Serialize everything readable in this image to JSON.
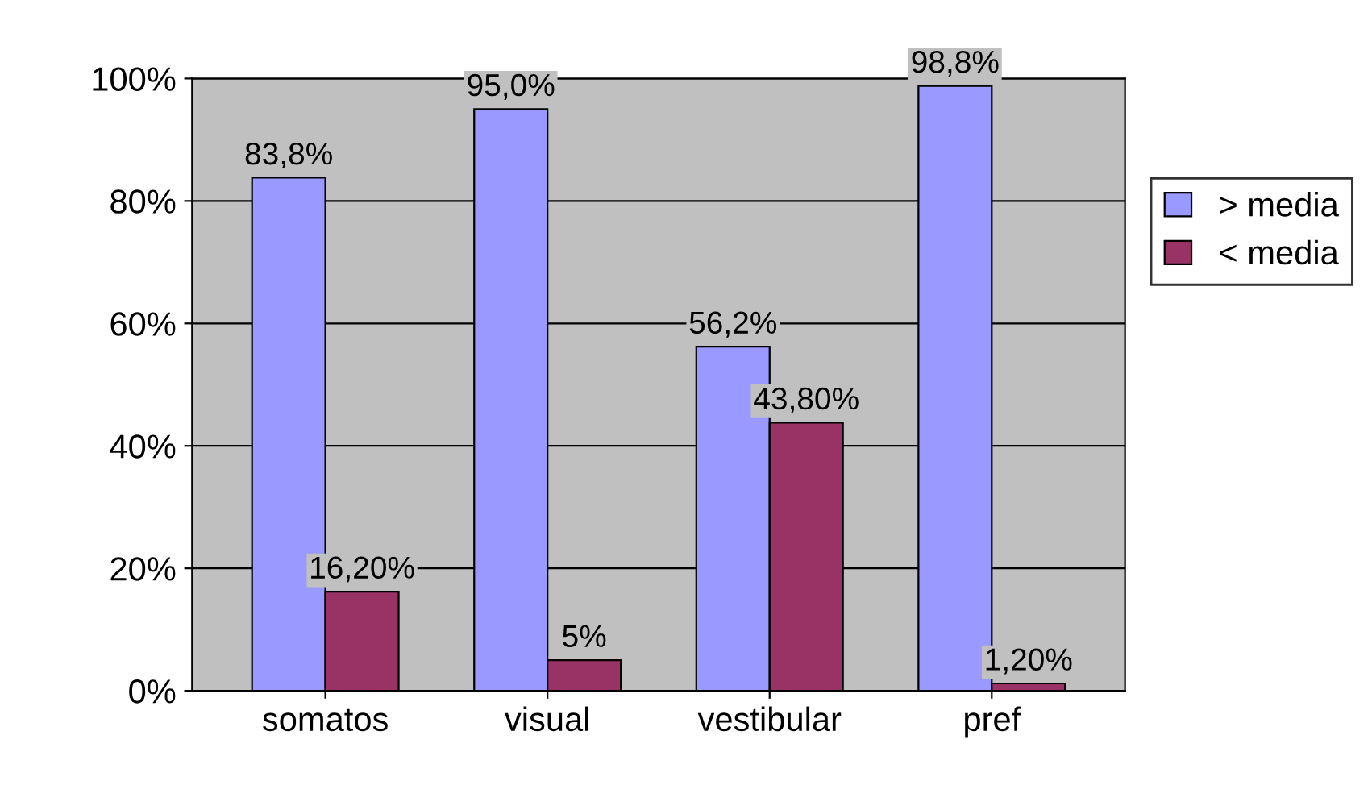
{
  "chart_data": {
    "type": "bar",
    "categories": [
      "somatos",
      "visual",
      "vestibular",
      "pref"
    ],
    "series": [
      {
        "name": "> media",
        "color": "#9999ff",
        "values": [
          83.8,
          95.0,
          56.2,
          98.8
        ],
        "value_labels": [
          "83,8%",
          "95,0%",
          "56,2%",
          "98,8%"
        ]
      },
      {
        "name": "< media",
        "color": "#993366",
        "values": [
          16.2,
          5,
          43.8,
          1.2
        ],
        "value_labels": [
          "16,20%",
          "5%",
          "43,80%",
          "1,20%"
        ]
      }
    ],
    "ylim": [
      0,
      100
    ],
    "yticks": [
      {
        "value": 0,
        "label": "0%"
      },
      {
        "value": 20,
        "label": "20%"
      },
      {
        "value": 40,
        "label": "40%"
      },
      {
        "value": 60,
        "label": "60%"
      },
      {
        "value": 80,
        "label": "80%"
      },
      {
        "value": 100,
        "label": "100%"
      }
    ],
    "grid": "y",
    "legend": "right"
  }
}
